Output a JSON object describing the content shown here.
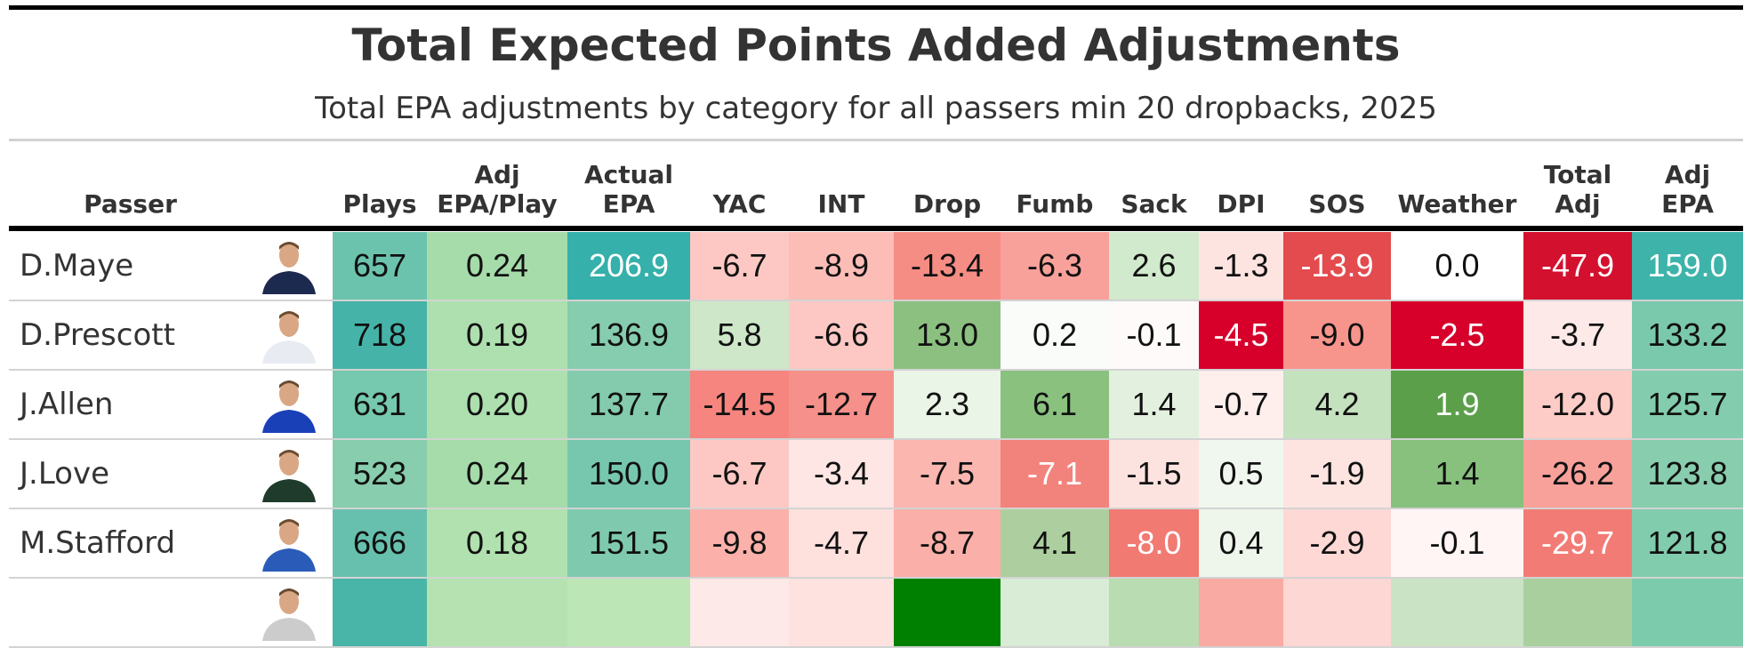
{
  "chart_data": {
    "type": "table",
    "title": "Total Expected Points Added Adjustments",
    "subtitle": "Total EPA adjustments by category for all passers min 20 dropbacks, 2025",
    "columns": [
      "Passer",
      "",
      "Plays",
      "Adj\nEPA/Play",
      "Actual\nEPA",
      "YAC",
      "INT",
      "Drop",
      "Fumb",
      "Sack",
      "DPI",
      "SOS",
      "Weather",
      "Total\nAdj",
      "Adj\nEPA"
    ],
    "rows": [
      {
        "passer": "D.Maye",
        "jersey": "#1d2a4f",
        "values": [
          "657",
          "0.24",
          "206.9",
          "-6.7",
          "-8.9",
          "-13.4",
          "-6.3",
          "2.6",
          "-1.3",
          "-13.9",
          "0.0",
          "-47.9",
          "159.0"
        ],
        "colors": [
          "#6cc3ad",
          "#a5dcaa",
          "#35b0aa",
          "#fdc8c3",
          "#fdbdb7",
          "#f68d85",
          "#f8a19a",
          "#d1e9cc",
          "#fde4e1",
          "#e34b4e",
          "#ffffff",
          "#d4102f",
          "#3db3aa"
        ],
        "light": [
          false,
          false,
          true,
          false,
          false,
          false,
          false,
          false,
          false,
          true,
          false,
          true,
          true
        ]
      },
      {
        "passer": "D.Prescott",
        "jersey": "#e8ecf2",
        "values": [
          "718",
          "0.19",
          "136.9",
          "5.8",
          "-6.6",
          "13.0",
          "0.2",
          "-0.1",
          "-4.5",
          "-9.0",
          "-2.5",
          "-3.7",
          "133.2"
        ],
        "colors": [
          "#45b3a8",
          "#ade0ae",
          "#86ccae",
          "#cde7c8",
          "#fdc8c3",
          "#8cc080",
          "#fafcfa",
          "#fffafa",
          "#d6002b",
          "#f7958d",
          "#d6002b",
          "#fde9e7",
          "#7ac9ad"
        ],
        "light": [
          false,
          false,
          false,
          false,
          false,
          false,
          false,
          false,
          true,
          false,
          true,
          false,
          false
        ]
      },
      {
        "passer": "J.Allen",
        "jersey": "#1a40b8",
        "values": [
          "631",
          "0.20",
          "137.7",
          "-14.5",
          "-12.7",
          "2.3",
          "6.1",
          "1.4",
          "-0.7",
          "4.2",
          "1.9",
          "-12.0",
          "125.7"
        ],
        "colors": [
          "#76c9ae",
          "#ade0ae",
          "#84cbae",
          "#f5857e",
          "#f6908a",
          "#eaf4e7",
          "#8ac17f",
          "#e3f0df",
          "#feeeec",
          "#c4e2bd",
          "#5c9f4b",
          "#fdccc7",
          "#83ccae"
        ],
        "light": [
          false,
          false,
          false,
          false,
          false,
          false,
          false,
          false,
          false,
          false,
          true,
          false,
          false
        ]
      },
      {
        "passer": "J.Love",
        "jersey": "#1f3b2b",
        "values": [
          "523",
          "0.24",
          "150.0",
          "-6.7",
          "-3.4",
          "-7.5",
          "-7.1",
          "-1.5",
          "0.5",
          "-1.9",
          "1.4",
          "-26.2",
          "123.8"
        ],
        "colors": [
          "#88cdad",
          "#a5dcaa",
          "#76c7ad",
          "#fdc8c3",
          "#fee6e4",
          "#fbb6b0",
          "#f2837c",
          "#fde3e0",
          "#f0f7ee",
          "#fde4e1",
          "#88c07e",
          "#f8a19a",
          "#88cdad"
        ],
        "light": [
          false,
          false,
          false,
          false,
          false,
          false,
          true,
          false,
          false,
          false,
          false,
          false,
          false
        ]
      },
      {
        "passer": "M.Stafford",
        "jersey": "#2a5bb8",
        "values": [
          "666",
          "0.18",
          "151.5",
          "-9.8",
          "-4.7",
          "-8.7",
          "4.1",
          "-8.0",
          "0.4",
          "-2.9",
          "-0.1",
          "-29.7",
          "121.8"
        ],
        "colors": [
          "#67c0ad",
          "#b0e1ae",
          "#7fcaae",
          "#fbb1aa",
          "#fee0dd",
          "#fbafa9",
          "#adcf9f",
          "#f17a73",
          "#eef6ec",
          "#fdd8d4",
          "#fff5f4",
          "#f27c75",
          "#82ccae"
        ],
        "light": [
          false,
          false,
          false,
          false,
          false,
          false,
          false,
          true,
          false,
          false,
          false,
          true,
          false
        ]
      },
      {
        "passer": "",
        "jersey": "#ccc",
        "values": [
          "",
          "",
          "",
          "",
          "",
          "",
          "",
          "",
          "",
          "",
          "",
          "",
          ""
        ],
        "colors": [
          "#48b5a8",
          "#b5e2b0",
          "#bce6b5",
          "#fde9e7",
          "#fee2e0",
          "#008000",
          "#d9ecd5",
          "#b9dcb2",
          "#f9aaa3",
          "#fdd7d3",
          "#cbe3c5",
          "#a9cf9f",
          "#7ccbad"
        ],
        "light": []
      }
    ]
  }
}
